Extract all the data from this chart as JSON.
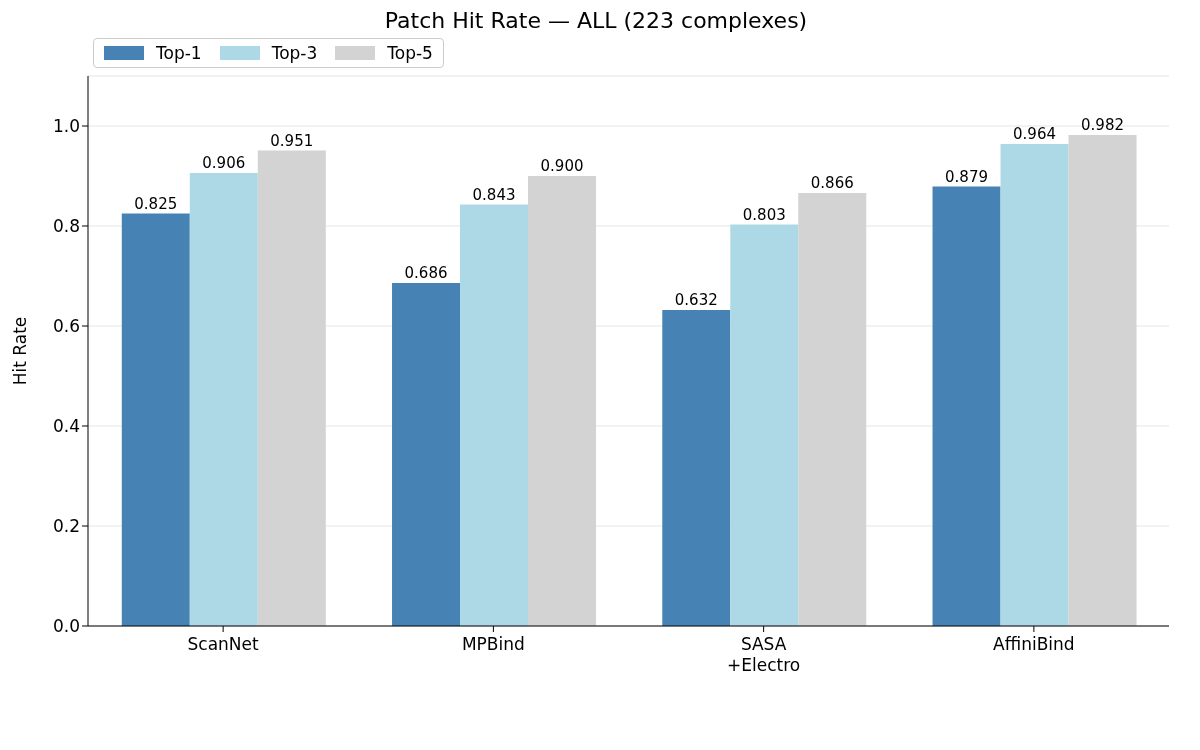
{
  "chart_data": {
    "type": "bar",
    "title": "Patch Hit Rate — ALL (223 complexes)",
    "ylabel": "Hit Rate",
    "categories": [
      "ScanNet",
      "MPBind",
      "SASA\n+Electro",
      "AffiniBind"
    ],
    "series": [
      {
        "name": "Top-1",
        "color": "#4682b4",
        "values": [
          0.825,
          0.686,
          0.632,
          0.879
        ],
        "value_labels": [
          "0.825",
          "0.686",
          "0.632",
          "0.879"
        ]
      },
      {
        "name": "Top-3",
        "color": "#add8e6",
        "values": [
          0.906,
          0.843,
          0.803,
          0.964
        ],
        "value_labels": [
          "0.906",
          "0.843",
          "0.803",
          "0.964"
        ]
      },
      {
        "name": "Top-5",
        "color": "#d3d3d3",
        "values": [
          0.951,
          0.9,
          0.866,
          0.982
        ],
        "value_labels": [
          "0.951",
          "0.900",
          "0.866",
          "0.982"
        ]
      }
    ],
    "ylim": [
      0,
      1.1
    ],
    "yticks": [
      {
        "value": 0,
        "label": "0.0"
      },
      {
        "value": 0.2,
        "label": "0.2"
      },
      {
        "value": 0.4,
        "label": "0.4"
      },
      {
        "value": 0.6,
        "label": "0.6"
      },
      {
        "value": 0.8,
        "label": "0.8"
      },
      {
        "value": 1,
        "label": "1.0"
      }
    ],
    "grid": "y",
    "legend": "top left"
  }
}
